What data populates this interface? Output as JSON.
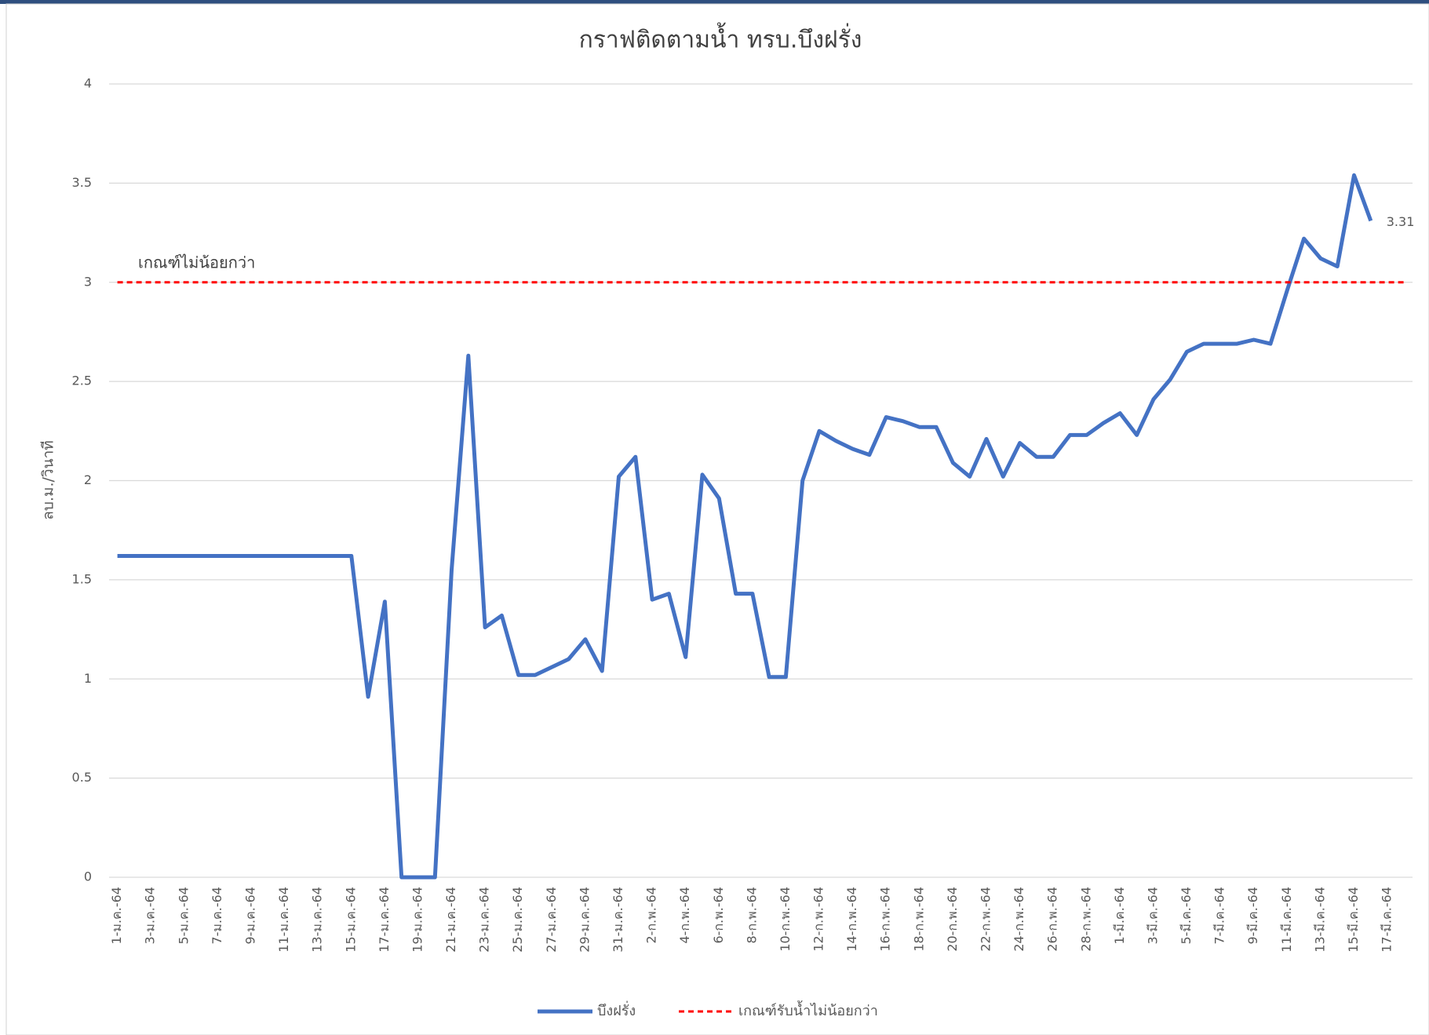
{
  "chart_data": {
    "type": "line",
    "title": "กราฟติดตามน้ำ ทรบ.บึงฝรั่ง",
    "y_label": "ลบ.ม./วินาที",
    "annotation": "เกณฑ์ไม่น้อยกว่า",
    "categories": [
      "1-ม.ค.-64",
      null,
      "3-ม.ค.-64",
      null,
      "5-ม.ค.-64",
      null,
      "7-ม.ค.-64",
      null,
      "9-ม.ค.-64",
      null,
      "11-ม.ค.-64",
      null,
      "13-ม.ค.-64",
      null,
      "15-ม.ค.-64",
      null,
      "17-ม.ค.-64",
      null,
      "19-ม.ค.-64",
      null,
      "21-ม.ค.-64",
      null,
      "23-ม.ค.-64",
      null,
      "25-ม.ค.-64",
      null,
      "27-ม.ค.-64",
      null,
      "29-ม.ค.-64",
      null,
      "31-ม.ค.-64",
      null,
      "2-ก.พ.-64",
      null,
      "4-ก.พ.-64",
      null,
      "6-ก.พ.-64",
      null,
      "8-ก.พ.-64",
      null,
      "10-ก.พ.-64",
      null,
      "12-ก.พ.-64",
      null,
      "14-ก.พ.-64",
      null,
      "16-ก.พ.-64",
      null,
      "18-ก.พ.-64",
      null,
      "20-ก.พ.-64",
      null,
      "22-ก.พ.-64",
      null,
      "24-ก.พ.-64",
      null,
      "26-ก.พ.-64",
      null,
      "28-ก.พ.-64",
      null,
      "1-มี.ค.-64",
      null,
      "3-มี.ค.-64",
      null,
      "5-มี.ค.-64",
      null,
      "7-มี.ค.-64",
      null,
      "9-มี.ค.-64",
      null,
      "11-มี.ค.-64",
      null,
      "13-มี.ค.-64",
      null,
      "15-มี.ค.-64",
      null,
      "17-มี.ค.-64",
      null
    ],
    "series": [
      {
        "name": "บึงฝรั่ง",
        "color": "#4472c4",
        "dashed": false,
        "values": [
          1.62,
          1.62,
          1.62,
          1.62,
          1.62,
          1.62,
          1.62,
          1.62,
          1.62,
          1.62,
          1.62,
          1.62,
          1.62,
          1.62,
          1.62,
          0.91,
          1.39,
          0,
          0,
          0,
          1.55,
          2.63,
          1.26,
          1.32,
          1.02,
          1.02,
          1.06,
          1.1,
          1.2,
          1.04,
          2.02,
          2.12,
          1.4,
          1.43,
          1.11,
          2.03,
          1.91,
          1.43,
          1.43,
          1.01,
          1.01,
          2.0,
          2.25,
          2.2,
          2.16,
          2.13,
          2.32,
          2.3,
          2.27,
          2.27,
          2.09,
          2.02,
          2.21,
          2.02,
          2.19,
          2.12,
          2.12,
          2.23,
          2.23,
          2.29,
          2.34,
          2.23,
          2.41,
          2.51,
          2.65,
          2.69,
          2.69,
          2.69,
          2.71,
          2.69,
          2.96,
          3.22,
          3.12,
          3.08,
          3.54,
          3.31,
          null,
          null
        ]
      },
      {
        "name": "เกณฑ์รับน้ำไม่น้อยกว่า",
        "color": "#ff0000",
        "dashed": true,
        "values": [
          3,
          3,
          3,
          3,
          3,
          3,
          3,
          3,
          3,
          3,
          3,
          3,
          3,
          3,
          3,
          3,
          3,
          3,
          3,
          3,
          3,
          3,
          3,
          3,
          3,
          3,
          3,
          3,
          3,
          3,
          3,
          3,
          3,
          3,
          3,
          3,
          3,
          3,
          3,
          3,
          3,
          3,
          3,
          3,
          3,
          3,
          3,
          3,
          3,
          3,
          3,
          3,
          3,
          3,
          3,
          3,
          3,
          3,
          3,
          3,
          3,
          3,
          3,
          3,
          3,
          3,
          3,
          3,
          3,
          3,
          3,
          3,
          3,
          3,
          3,
          3,
          3,
          3
        ]
      }
    ],
    "ylim": [
      0,
      4
    ],
    "yticks": [
      0,
      0.5,
      1,
      1.5,
      2,
      2.5,
      3,
      3.5,
      4
    ],
    "grid": true,
    "legend": "bottom"
  }
}
